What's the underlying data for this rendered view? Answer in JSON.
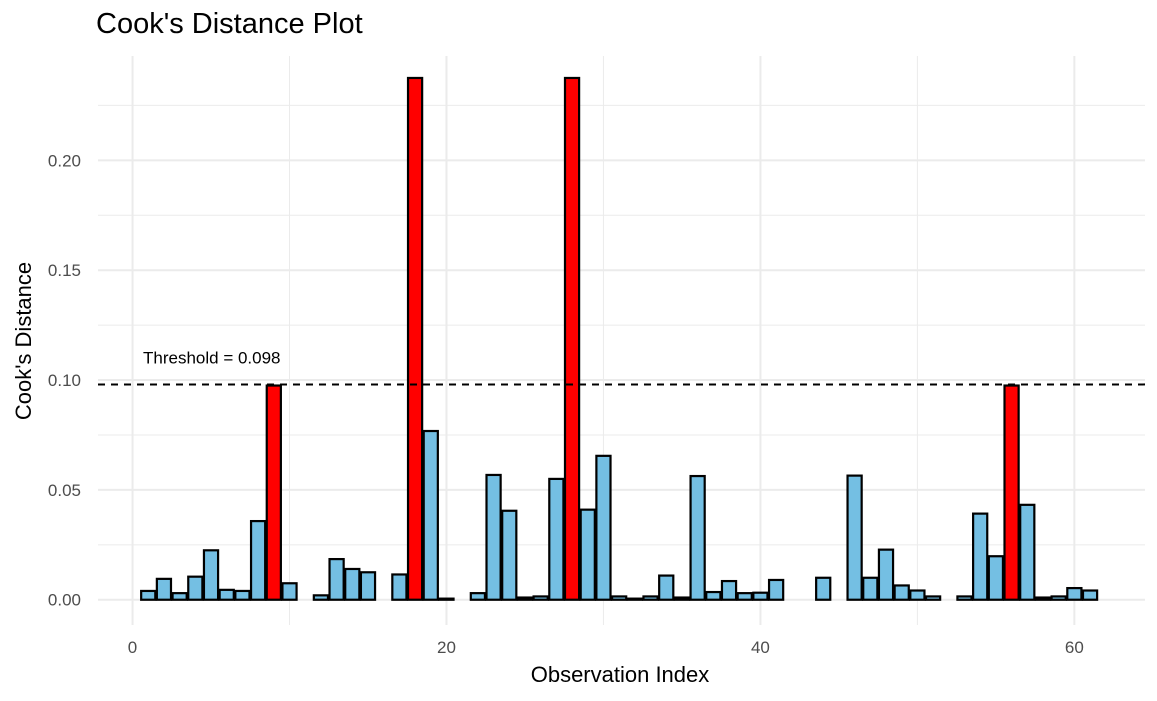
{
  "chart_data": {
    "type": "bar",
    "title": "Cook's Distance Plot",
    "xlabel": "Observation Index",
    "ylabel": "Cook's Distance",
    "xlim": [
      -2.2,
      64.5
    ],
    "ylim": [
      -0.0115,
      0.2475
    ],
    "xticks": [
      0,
      20,
      40,
      60
    ],
    "xtick_labels": [
      "0",
      "20",
      "40",
      "60"
    ],
    "yticks": [
      0,
      0.05,
      0.1,
      0.15,
      0.2
    ],
    "ytick_labels": [
      "0.00",
      "0.05",
      "0.10",
      "0.15",
      "0.20"
    ],
    "threshold": 0.098,
    "threshold_label": "Threshold = 0.098",
    "grid": true,
    "colors": {
      "normal": "#74BFE3",
      "influential": "#FF0000",
      "outline": "#000000",
      "grid": "#EBEBEB"
    },
    "series": [
      {
        "x": [
          1,
          2,
          3,
          4,
          5,
          6,
          7,
          8,
          9,
          10,
          11,
          12,
          13,
          14,
          15,
          16,
          17,
          18,
          19,
          20,
          21,
          22,
          23,
          24,
          25,
          26,
          27,
          28,
          29,
          30,
          31,
          32,
          33,
          34,
          35,
          36,
          37,
          38,
          39,
          40,
          41,
          42,
          43,
          44,
          45,
          46,
          47,
          48,
          49,
          50,
          51,
          52,
          53,
          54,
          55,
          56,
          57,
          58,
          59,
          60,
          61
        ],
        "values": [
          0.004,
          0.0095,
          0.003,
          0.0105,
          0.0225,
          0.0045,
          0.004,
          0.0358,
          0.0975,
          0.0075,
          0.0,
          0.002,
          0.0185,
          0.014,
          0.0125,
          0.0,
          0.0115,
          0.2375,
          0.0768,
          0.0005,
          0.0,
          0.003,
          0.0568,
          0.0405,
          0.001,
          0.0015,
          0.055,
          0.2375,
          0.041,
          0.0655,
          0.0015,
          0.0005,
          0.0015,
          0.011,
          0.001,
          0.0563,
          0.0035,
          0.0085,
          0.003,
          0.0032,
          0.009,
          0.0,
          0.0,
          0.01,
          0.0,
          0.0565,
          0.01,
          0.0228,
          0.0065,
          0.0042,
          0.0015,
          0.0,
          0.0015,
          0.0392,
          0.0198,
          0.0975,
          0.0432,
          0.001,
          0.0015,
          0.0053,
          0.0042
        ]
      }
    ]
  }
}
